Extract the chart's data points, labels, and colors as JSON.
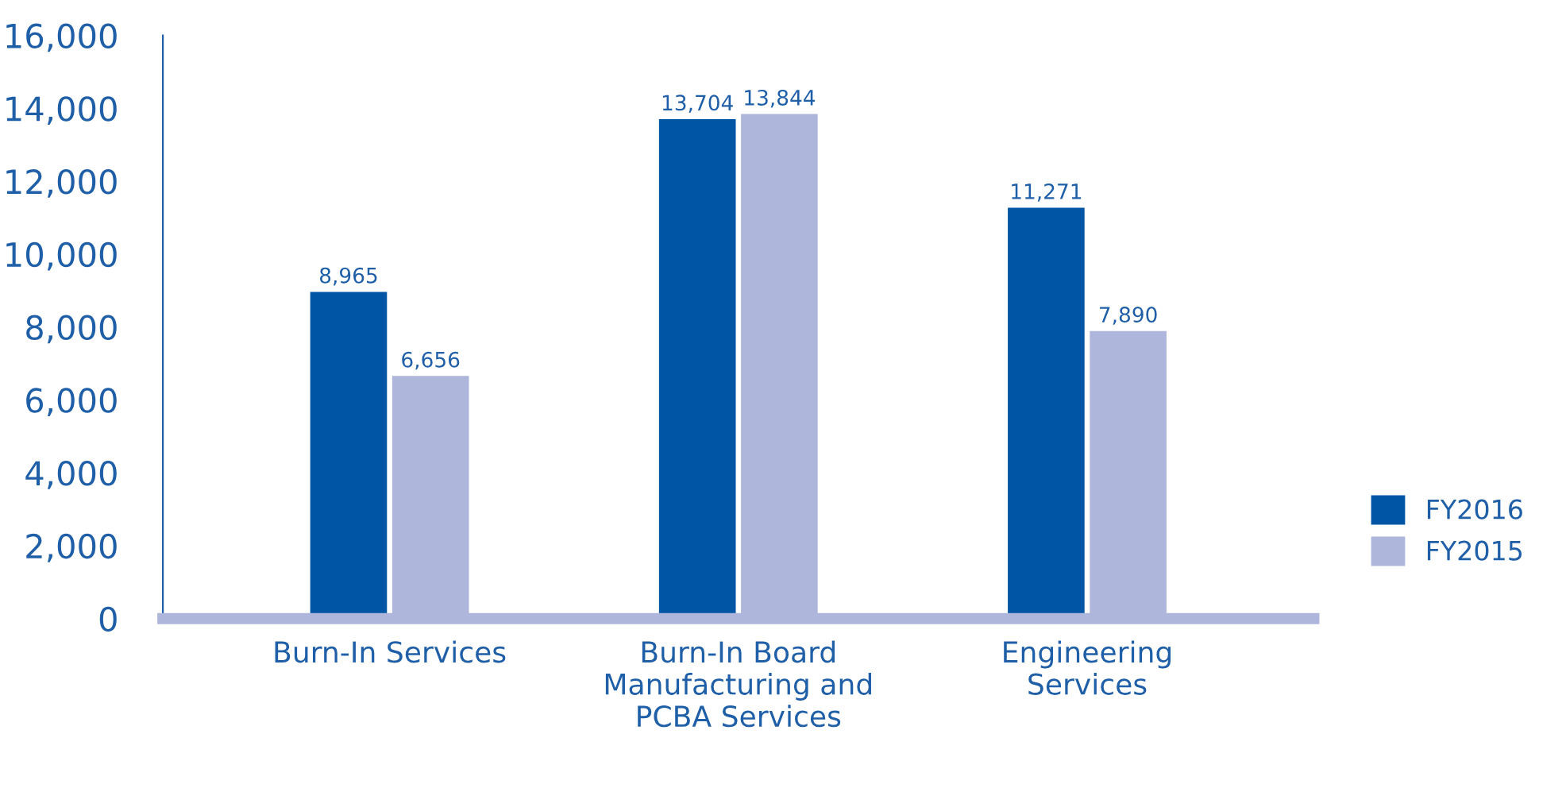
{
  "chart_data": {
    "type": "bar",
    "categories": [
      "Burn-In Services",
      "Burn-In Board\nManufacturing and\nPCBA Services",
      "Engineering\nServices"
    ],
    "series": [
      {
        "name": "FY2016",
        "color": "#0055a5",
        "values": [
          8965,
          13704,
          11271
        ],
        "value_labels": [
          "8,965",
          "13,704",
          "11,271"
        ]
      },
      {
        "name": "FY2015",
        "color": "#aeb6dc",
        "values": [
          6656,
          13844,
          7890
        ],
        "value_labels": [
          "6,656",
          "13,844",
          "7,890"
        ]
      }
    ],
    "ylim": [
      0,
      16000
    ],
    "yticks": [
      0,
      {
        "value": 2000,
        "label": "2,000"
      },
      {
        "value": 4000,
        "label": "4,000"
      },
      {
        "value": 6000,
        "label": "6,000"
      },
      {
        "value": 8000,
        "label": "8,000"
      },
      {
        "value": 10000,
        "label": "10,000"
      },
      {
        "value": 12000,
        "label": "12,000"
      },
      {
        "value": 14000,
        "label": "14,000"
      },
      {
        "value": 16000,
        "label": "16,000"
      }
    ],
    "grid": false,
    "legend": "right"
  }
}
